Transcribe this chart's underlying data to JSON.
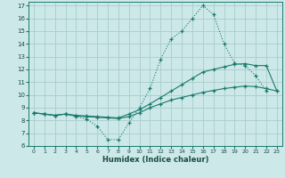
{
  "xlabel": "Humidex (Indice chaleur)",
  "background_color": "#cce8e8",
  "grid_color": "#aacccc",
  "line_color": "#1a7a6e",
  "xlim": [
    -0.5,
    23.5
  ],
  "ylim": [
    6,
    17.3
  ],
  "xticks": [
    0,
    1,
    2,
    3,
    4,
    5,
    6,
    7,
    8,
    9,
    10,
    11,
    12,
    13,
    14,
    15,
    16,
    17,
    18,
    19,
    20,
    21,
    22,
    23
  ],
  "yticks": [
    6,
    7,
    8,
    9,
    10,
    11,
    12,
    13,
    14,
    15,
    16,
    17
  ],
  "curve1_x": [
    0,
    1,
    2,
    3,
    4,
    5,
    6,
    7,
    8,
    9,
    10,
    11,
    12,
    13,
    14,
    15,
    16,
    17,
    18,
    19,
    20,
    21,
    22
  ],
  "curve1_y": [
    8.6,
    8.5,
    8.4,
    8.5,
    8.3,
    8.1,
    7.55,
    6.5,
    6.5,
    7.8,
    9.0,
    10.5,
    12.8,
    14.4,
    15.0,
    16.0,
    17.0,
    16.3,
    14.0,
    12.5,
    12.3,
    11.5,
    10.3
  ],
  "curve2_x": [
    0,
    1,
    2,
    3,
    4,
    5,
    6,
    7,
    8,
    9,
    10,
    11,
    12,
    13,
    14,
    15,
    16,
    17,
    18,
    19,
    20,
    21,
    22,
    23
  ],
  "curve2_y": [
    8.6,
    8.5,
    8.4,
    8.5,
    8.4,
    8.35,
    8.3,
    8.25,
    8.2,
    8.5,
    8.85,
    9.3,
    9.8,
    10.3,
    10.8,
    11.3,
    11.8,
    12.0,
    12.2,
    12.4,
    12.45,
    12.3,
    12.3,
    10.3
  ],
  "curve3_x": [
    0,
    1,
    2,
    3,
    4,
    5,
    6,
    7,
    8,
    9,
    10,
    11,
    12,
    13,
    14,
    15,
    16,
    17,
    18,
    19,
    20,
    21,
    22,
    23
  ],
  "curve3_y": [
    8.6,
    8.5,
    8.4,
    8.5,
    8.35,
    8.3,
    8.25,
    8.2,
    8.15,
    8.3,
    8.6,
    9.0,
    9.3,
    9.6,
    9.8,
    10.0,
    10.2,
    10.35,
    10.5,
    10.6,
    10.7,
    10.65,
    10.5,
    10.3
  ]
}
